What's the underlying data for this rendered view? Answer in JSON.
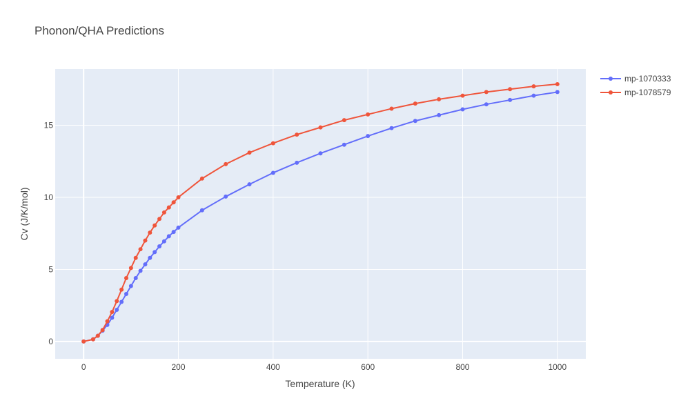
{
  "chart_data": {
    "type": "line",
    "title": "Phonon/QHA Predictions",
    "xlabel": "Temperature (K)",
    "ylabel": "Cv (J/K/mol)",
    "xlim": [
      -60,
      1060
    ],
    "ylim": [
      -1.2,
      18.9
    ],
    "xticks": [
      0,
      200,
      400,
      600,
      800,
      1000
    ],
    "yticks": [
      0,
      5,
      10,
      15
    ],
    "grid": true,
    "legend_position": "top-right",
    "colors": {
      "plot_bg": "#e5ecf6",
      "grid": "#ffffff",
      "page_bg": "#ffffff"
    },
    "x": [
      0,
      20,
      30,
      40,
      50,
      60,
      70,
      80,
      90,
      100,
      110,
      120,
      130,
      140,
      150,
      160,
      170,
      180,
      190,
      200,
      250,
      300,
      350,
      400,
      450,
      500,
      550,
      600,
      650,
      700,
      750,
      800,
      850,
      900,
      950,
      1000
    ],
    "series": [
      {
        "name": "mp-1070333",
        "color": "#636efa",
        "values": [
          0,
          0.15,
          0.4,
          0.75,
          1.15,
          1.65,
          2.2,
          2.75,
          3.3,
          3.85,
          4.4,
          4.9,
          5.35,
          5.8,
          6.2,
          6.6,
          6.95,
          7.3,
          7.6,
          7.9,
          9.1,
          10.05,
          10.9,
          11.7,
          12.4,
          13.05,
          13.65,
          14.25,
          14.8,
          15.3,
          15.7,
          16.1,
          16.45,
          16.75,
          17.05,
          17.3
        ]
      },
      {
        "name": "mp-1078579",
        "color": "#ef553b",
        "values": [
          0,
          0.15,
          0.4,
          0.8,
          1.4,
          2.05,
          2.8,
          3.6,
          4.4,
          5.1,
          5.8,
          6.4,
          7.0,
          7.55,
          8.05,
          8.5,
          8.95,
          9.3,
          9.65,
          10.0,
          11.3,
          12.3,
          13.1,
          13.75,
          14.35,
          14.85,
          15.35,
          15.75,
          16.15,
          16.5,
          16.8,
          17.05,
          17.3,
          17.5,
          17.7,
          17.85
        ]
      }
    ]
  }
}
